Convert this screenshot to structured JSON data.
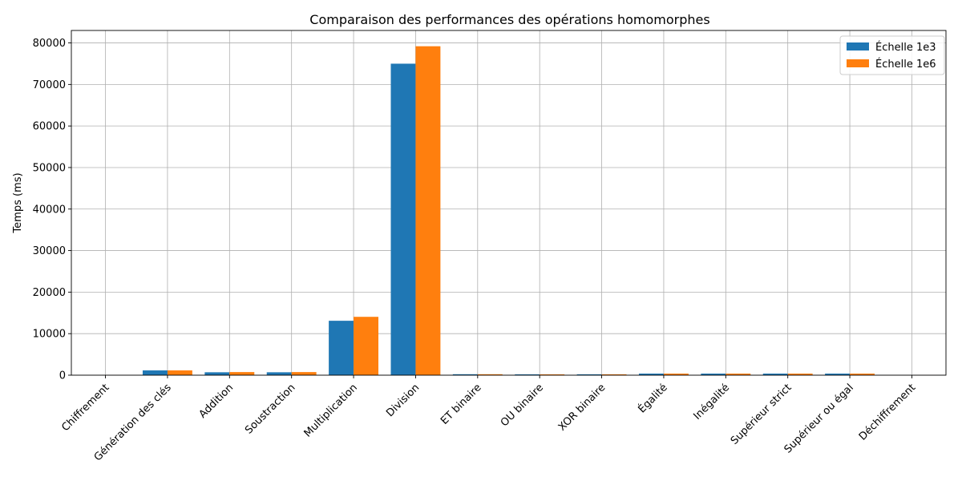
{
  "chart_data": {
    "type": "bar",
    "title": "Comparaison des performances des opérations homomorphes",
    "xlabel": "",
    "ylabel": "Temps (ms)",
    "categories": [
      "Chiffrement",
      "Génération des clés",
      "Addition",
      "Soustraction",
      "Multiplication",
      "Division",
      "ET binaire",
      "OU binaire",
      "XOR binaire",
      "Égalité",
      "Inégalité",
      "Supérieur strict",
      "Supérieur ou égal",
      "Déchiffrement"
    ],
    "series": [
      {
        "name": "Échelle 1e3",
        "color": "#1f77b4",
        "values": [
          20,
          1150,
          700,
          700,
          13100,
          75000,
          230,
          200,
          210,
          380,
          380,
          380,
          380,
          10
        ]
      },
      {
        "name": "Échelle 1e6",
        "color": "#ff7f0e",
        "values": [
          20,
          1150,
          750,
          750,
          14050,
          79200,
          230,
          200,
          210,
          380,
          380,
          380,
          380,
          10
        ]
      }
    ],
    "ylim": [
      0,
      83000
    ],
    "yticks": [
      0,
      10000,
      20000,
      30000,
      40000,
      50000,
      60000,
      70000,
      80000
    ],
    "grid": true,
    "legend_position": "top-right"
  }
}
